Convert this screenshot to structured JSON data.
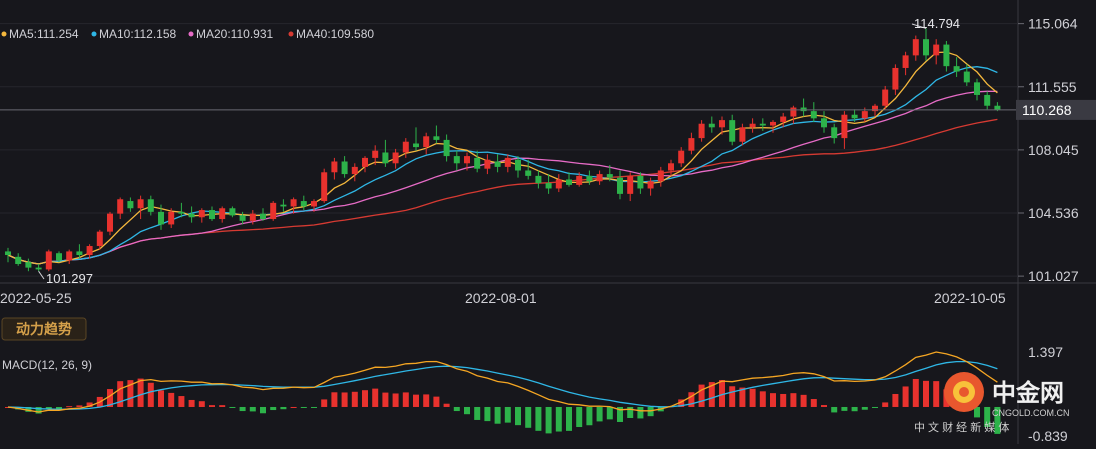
{
  "colors": {
    "background": "#17171c",
    "up": "#e8322e",
    "down": "#2db34a",
    "ma5": "#f5b83d",
    "ma10": "#2fb7e6",
    "ma20": "#e66bc6",
    "ma40": "#d63a32",
    "axis_text": "#d0d0d6",
    "grid": "#26262c",
    "macd_dif": "#f5a623",
    "macd_dea": "#2fb7e6"
  },
  "legend": {
    "ma5": "MA5:111.254",
    "ma10": "MA10:112.158",
    "ma20": "MA20:110.931",
    "ma40": "MA40:109.580"
  },
  "badge": "动力趋势",
  "macd_label": "MACD(12, 26, 9)",
  "watermark": {
    "name": "中金网",
    "domain": "CNGOLD.COM.CN",
    "tagline": "中 文 财 经 新 媒 体"
  },
  "chart_data": {
    "type": "candlestick",
    "price_axis": {
      "ticks": [
        "115.064",
        "111.555",
        "108.045",
        "104.536",
        "101.027"
      ],
      "range": [
        100.7,
        115.6
      ],
      "current_price": "110.268",
      "current_value": 110.268
    },
    "date_ticks": [
      {
        "label": "2022-05-25",
        "index": 1
      },
      {
        "label": "2022-08-01",
        "index": 48
      },
      {
        "label": "2022-10-05",
        "index": 93
      }
    ],
    "high_marker": {
      "label": "114.794",
      "index": 90
    },
    "low_marker": {
      "label": "101.297",
      "index": 3
    },
    "candles": [
      [
        102.4,
        102.6,
        101.8,
        102.2
      ],
      [
        102.1,
        102.3,
        101.6,
        101.7
      ],
      [
        101.8,
        102.0,
        101.3,
        101.5
      ],
      [
        101.5,
        101.7,
        101.3,
        101.4
      ],
      [
        101.4,
        102.5,
        101.3,
        102.4
      ],
      [
        102.3,
        102.4,
        101.8,
        101.9
      ],
      [
        101.9,
        102.5,
        101.7,
        102.4
      ],
      [
        102.4,
        102.8,
        102.0,
        102.2
      ],
      [
        102.2,
        102.8,
        102.0,
        102.7
      ],
      [
        102.7,
        103.6,
        102.5,
        103.5
      ],
      [
        103.5,
        104.6,
        103.3,
        104.5
      ],
      [
        104.5,
        105.4,
        104.2,
        105.3
      ],
      [
        105.2,
        105.4,
        104.6,
        104.8
      ],
      [
        104.8,
        105.5,
        104.2,
        105.3
      ],
      [
        105.3,
        105.5,
        104.4,
        104.6
      ],
      [
        104.6,
        105.0,
        103.6,
        103.9
      ],
      [
        103.9,
        104.8,
        103.7,
        104.6
      ],
      [
        104.6,
        105.1,
        104.3,
        104.5
      ],
      [
        104.5,
        104.9,
        104.0,
        104.3
      ],
      [
        104.3,
        104.8,
        104.0,
        104.7
      ],
      [
        104.7,
        104.9,
        104.1,
        104.2
      ],
      [
        104.2,
        104.9,
        104.0,
        104.8
      ],
      [
        104.8,
        104.9,
        104.3,
        104.4
      ],
      [
        104.4,
        104.6,
        103.9,
        104.1
      ],
      [
        104.1,
        104.7,
        103.9,
        104.5
      ],
      [
        104.5,
        104.8,
        104.1,
        104.2
      ],
      [
        104.2,
        105.2,
        104.1,
        105.1
      ],
      [
        105.0,
        105.3,
        104.6,
        104.9
      ],
      [
        104.9,
        105.4,
        104.5,
        105.3
      ],
      [
        105.2,
        105.5,
        104.7,
        104.9
      ],
      [
        104.9,
        105.3,
        104.6,
        105.2
      ],
      [
        105.2,
        107.0,
        105.1,
        106.8
      ],
      [
        106.8,
        107.6,
        106.4,
        107.4
      ],
      [
        107.4,
        107.7,
        106.5,
        106.7
      ],
      [
        106.7,
        107.3,
        106.3,
        107.1
      ],
      [
        107.1,
        107.7,
        106.8,
        107.6
      ],
      [
        107.6,
        108.3,
        107.2,
        108.0
      ],
      [
        107.9,
        108.6,
        107.1,
        107.3
      ],
      [
        107.3,
        108.1,
        107.0,
        107.9
      ],
      [
        107.9,
        108.7,
        107.6,
        108.5
      ],
      [
        108.4,
        109.3,
        108.0,
        108.2
      ],
      [
        108.2,
        109.0,
        107.8,
        108.8
      ],
      [
        108.8,
        109.4,
        108.4,
        108.6
      ],
      [
        108.6,
        108.9,
        107.4,
        107.7
      ],
      [
        107.7,
        108.0,
        106.9,
        107.3
      ],
      [
        107.3,
        107.9,
        106.9,
        107.7
      ],
      [
        107.6,
        108.0,
        106.8,
        107.0
      ],
      [
        107.0,
        107.8,
        106.7,
        107.5
      ],
      [
        107.4,
        107.8,
        106.8,
        107.1
      ],
      [
        107.1,
        107.8,
        106.8,
        107.6
      ],
      [
        107.5,
        107.7,
        106.5,
        106.9
      ],
      [
        106.9,
        107.5,
        106.4,
        106.6
      ],
      [
        106.6,
        106.9,
        105.9,
        106.2
      ],
      [
        106.2,
        106.7,
        105.6,
        105.9
      ],
      [
        105.9,
        106.7,
        105.7,
        106.4
      ],
      [
        106.4,
        106.8,
        106.0,
        106.1
      ],
      [
        106.1,
        106.8,
        106.0,
        106.6
      ],
      [
        106.6,
        106.9,
        106.1,
        106.3
      ],
      [
        106.3,
        106.9,
        106.1,
        106.7
      ],
      [
        106.7,
        107.2,
        106.3,
        106.5
      ],
      [
        106.5,
        106.9,
        105.3,
        105.6
      ],
      [
        105.6,
        106.8,
        105.2,
        106.6
      ],
      [
        106.6,
        106.8,
        105.6,
        105.9
      ],
      [
        105.9,
        106.5,
        105.5,
        106.3
      ],
      [
        106.3,
        107.1,
        106.0,
        106.9
      ],
      [
        106.9,
        107.5,
        106.6,
        107.3
      ],
      [
        107.3,
        108.2,
        107.1,
        108.0
      ],
      [
        108.0,
        109.0,
        107.8,
        108.7
      ],
      [
        108.7,
        109.7,
        108.5,
        109.5
      ],
      [
        109.5,
        109.9,
        109.0,
        109.3
      ],
      [
        109.3,
        109.9,
        108.9,
        109.7
      ],
      [
        109.7,
        110.0,
        108.3,
        108.5
      ],
      [
        108.5,
        109.5,
        108.3,
        109.3
      ],
      [
        109.3,
        109.8,
        109.0,
        109.5
      ],
      [
        109.5,
        109.8,
        109.1,
        109.4
      ],
      [
        109.4,
        109.7,
        109.0,
        109.6
      ],
      [
        109.6,
        110.1,
        109.3,
        109.9
      ],
      [
        109.9,
        110.5,
        109.5,
        110.4
      ],
      [
        110.4,
        110.9,
        109.9,
        110.2
      ],
      [
        110.2,
        110.7,
        109.6,
        109.8
      ],
      [
        109.8,
        110.2,
        109.0,
        109.3
      ],
      [
        109.3,
        109.5,
        108.4,
        108.7
      ],
      [
        108.7,
        110.2,
        108.1,
        110.0
      ],
      [
        110.0,
        110.3,
        109.6,
        109.8
      ],
      [
        109.8,
        110.4,
        109.6,
        110.2
      ],
      [
        110.2,
        110.6,
        109.9,
        110.5
      ],
      [
        110.5,
        111.6,
        110.3,
        111.4
      ],
      [
        111.4,
        112.8,
        111.1,
        112.6
      ],
      [
        112.6,
        113.5,
        112.2,
        113.3
      ],
      [
        113.3,
        114.4,
        113.0,
        114.2
      ],
      [
        114.2,
        114.8,
        113.0,
        113.3
      ],
      [
        113.3,
        114.2,
        112.8,
        113.9
      ],
      [
        113.9,
        114.1,
        112.4,
        112.7
      ],
      [
        112.7,
        113.2,
        112.1,
        112.4
      ],
      [
        112.4,
        112.8,
        111.6,
        111.8
      ],
      [
        111.8,
        112.0,
        110.8,
        111.1
      ],
      [
        111.1,
        111.3,
        110.3,
        110.5
      ],
      [
        110.5,
        110.7,
        110.2,
        110.268
      ]
    ],
    "macd": {
      "range": [
        -0.839,
        1.397
      ],
      "ticks": [
        "1.397",
        "-0.839"
      ]
    }
  }
}
